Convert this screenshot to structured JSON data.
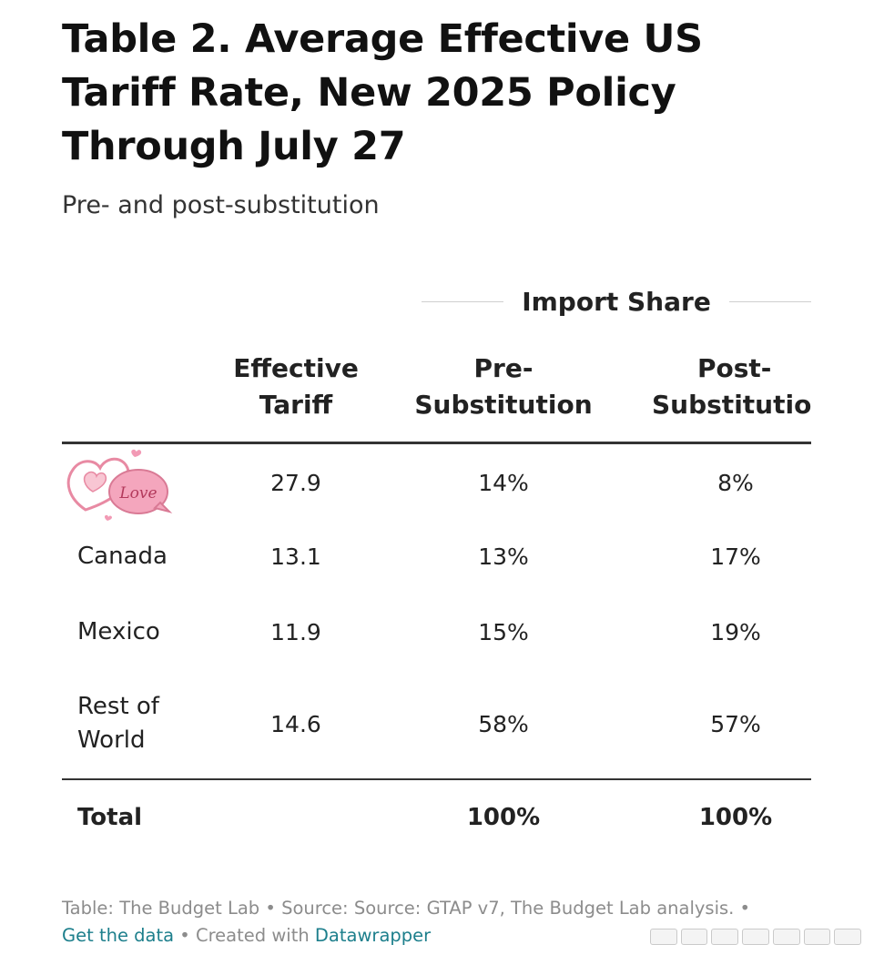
{
  "chart_data": {
    "type": "table",
    "title": "Table 2. Average Effective US Tariff Rate, New 2025 Policy Through July 27",
    "subtitle": "Pre- and post-substitution",
    "column_group": "Import Share",
    "columns": {
      "effective_tariff": [
        "Effective",
        "Tariff"
      ],
      "pre_substitution": [
        "Pre-",
        "Substitution"
      ],
      "post_substitution": [
        "Post-",
        "Substitution"
      ]
    },
    "rows": [
      {
        "label": "",
        "label_obscured_by": "heart-love-sticker",
        "effective_tariff": "27.9",
        "pre_substitution": "14%",
        "post_substitution": "8%"
      },
      {
        "label": "Canada",
        "effective_tariff": "13.1",
        "pre_substitution": "13%",
        "post_substitution": "17%"
      },
      {
        "label": "Mexico",
        "effective_tariff": "11.9",
        "pre_substitution": "15%",
        "post_substitution": "19%"
      },
      {
        "label": "Rest of World",
        "effective_tariff": "14.6",
        "pre_substitution": "58%",
        "post_substitution": "57%"
      }
    ],
    "total": {
      "label": "Total",
      "effective_tariff": "",
      "pre_substitution": "100%",
      "post_substitution": "100%"
    }
  },
  "footer": {
    "credit": "Table: The Budget Lab • Source: Source: GTAP v7, The Budget Lab analysis. •",
    "get_data_link": "Get the data",
    "separator": " • Created with ",
    "tool_link": "Datawrapper"
  },
  "sticker_text": "Love",
  "colors": {
    "text": "#222222",
    "muted": "#8c8c8c",
    "link": "#1d7f8c",
    "rule": "#333333",
    "sticker_pink": "#f4a6bd"
  }
}
